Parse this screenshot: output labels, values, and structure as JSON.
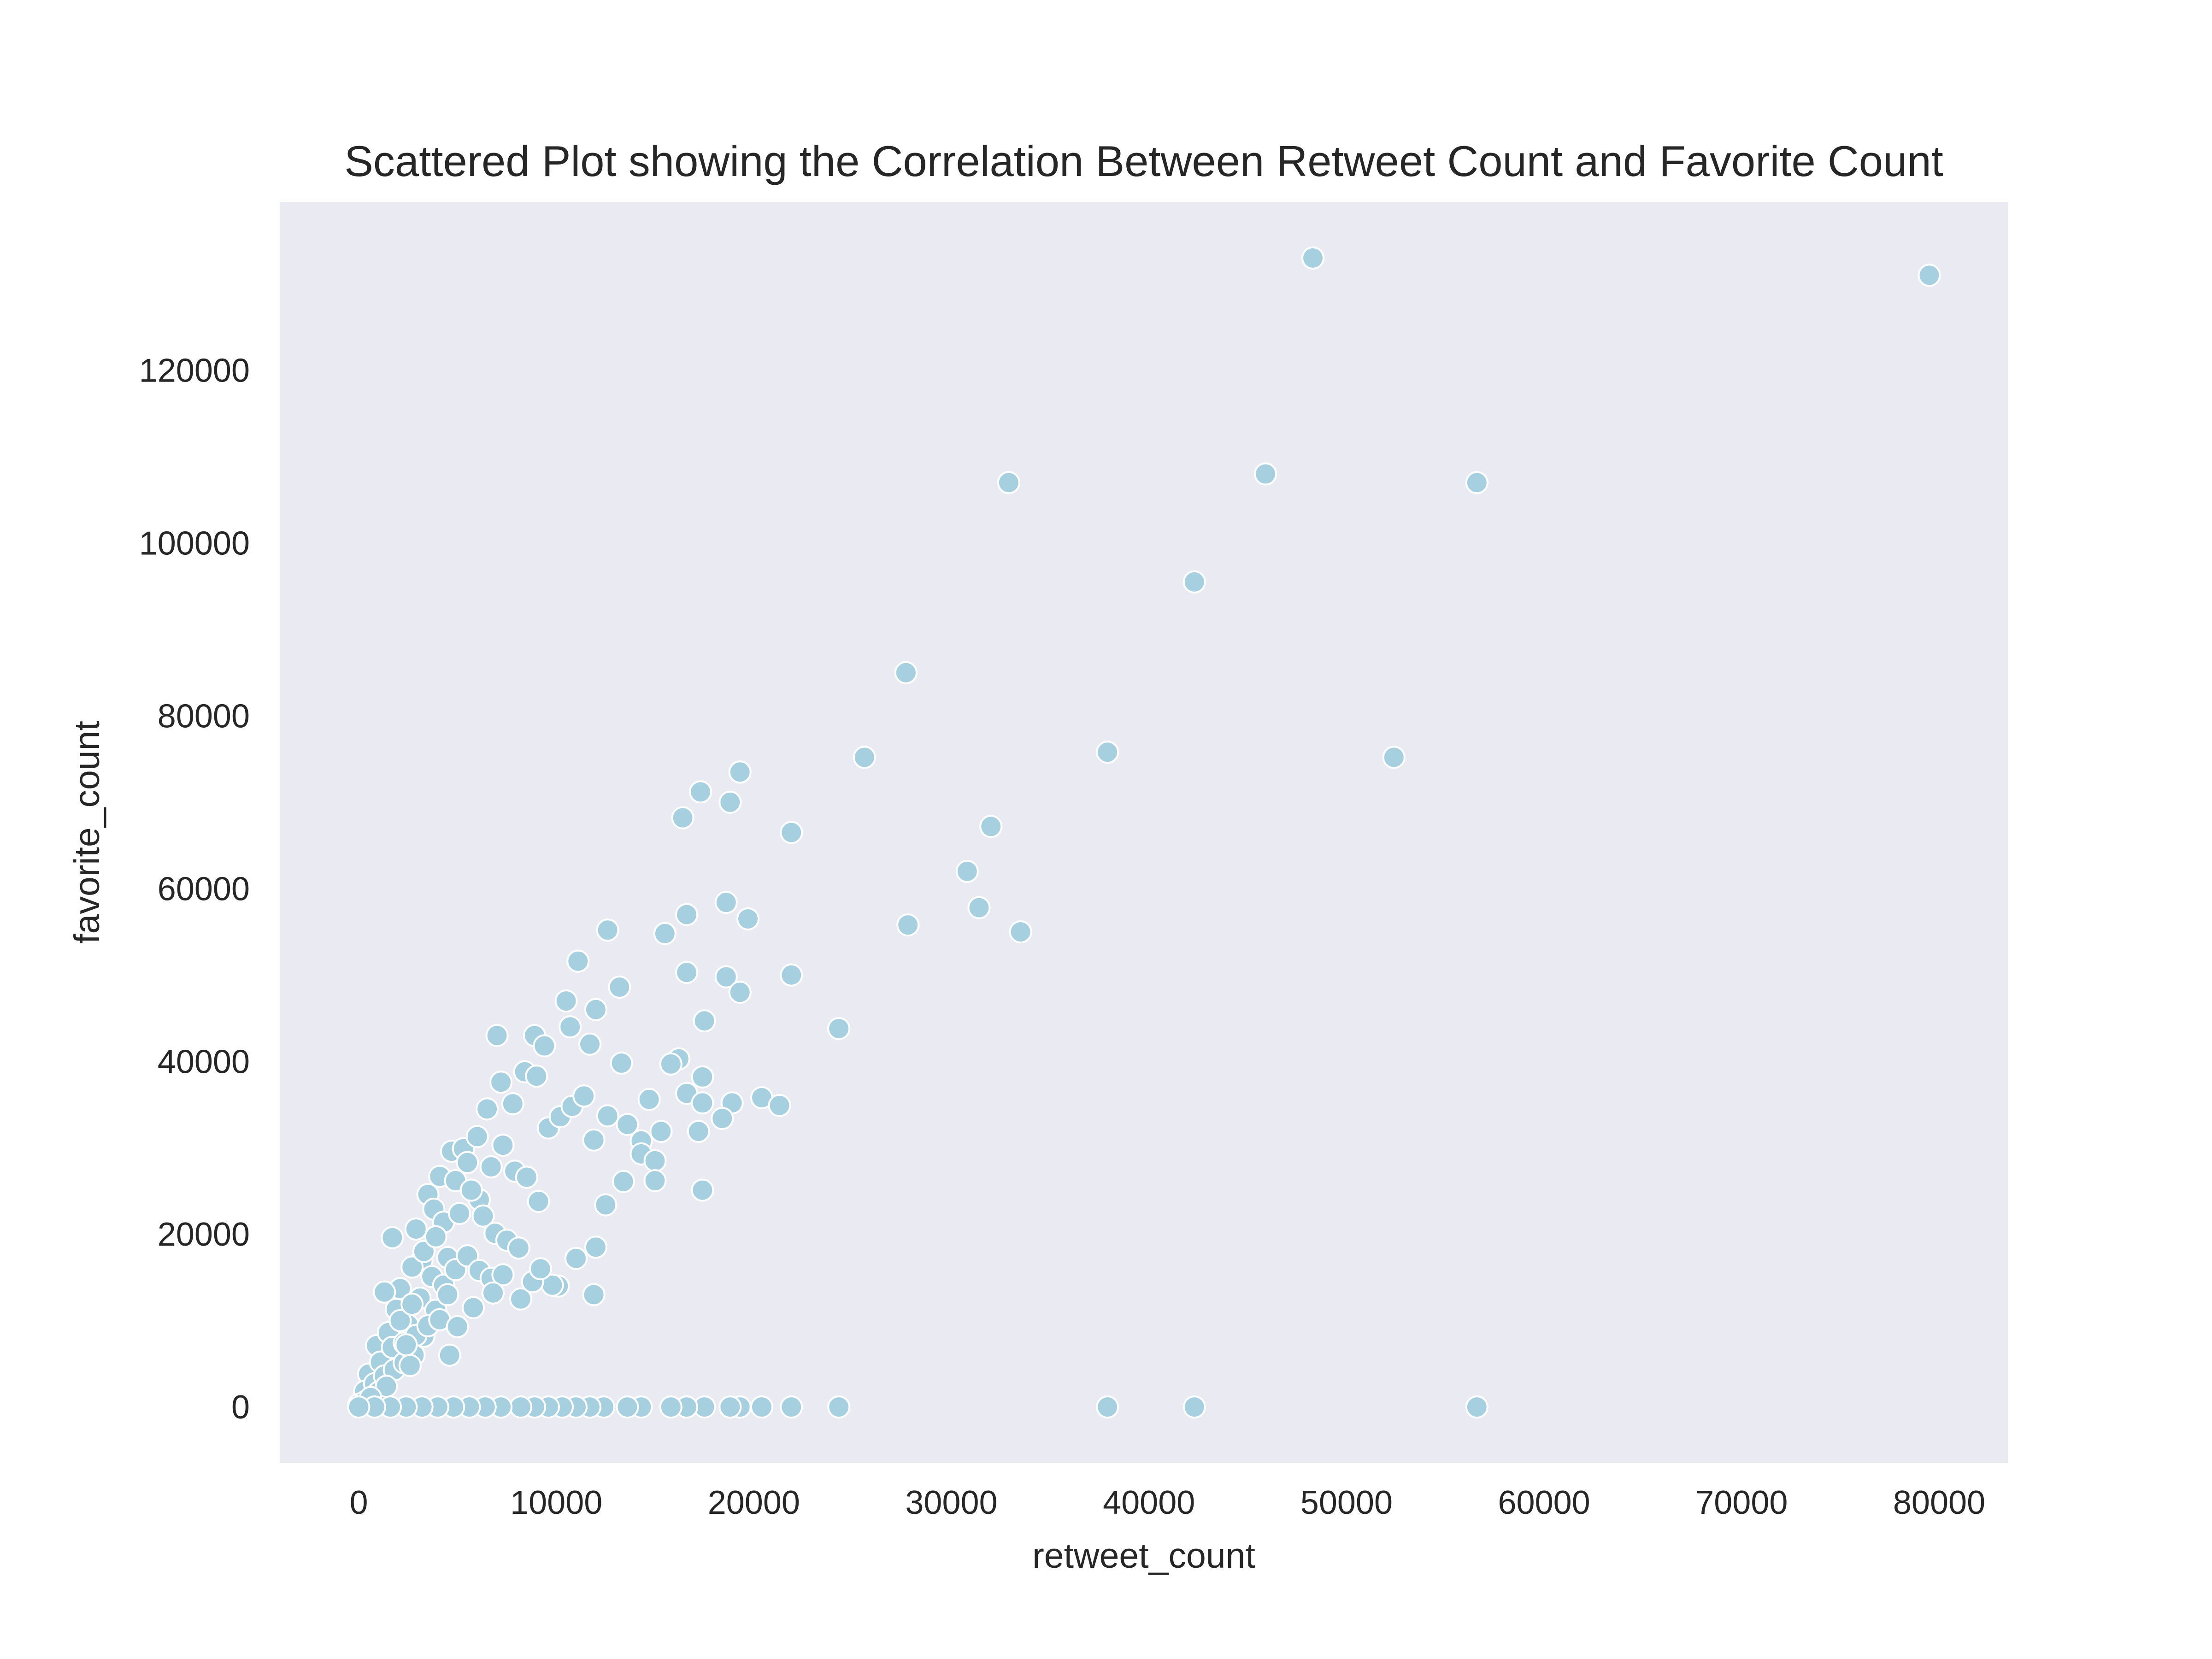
{
  "chart_data": {
    "type": "scatter",
    "title": "Scattered Plot showing the Correlation Between Retweet Count and Favorite Count",
    "xlabel": "retweet_count",
    "ylabel": "favorite_count",
    "xlim": [
      -4000,
      83500
    ],
    "ylim": [
      -6500,
      139500
    ],
    "xticks": [
      0,
      10000,
      20000,
      30000,
      40000,
      50000,
      60000,
      70000,
      80000
    ],
    "yticks": [
      0,
      20000,
      40000,
      60000,
      80000,
      100000,
      120000
    ],
    "grid": false,
    "background_color": "#eaeaf2",
    "point_color": "#a6cfe0",
    "point_edge_color": "#ffffff",
    "series": [
      {
        "x": [
          48300,
          79500,
          45900,
          32900,
          56600,
          42300,
          27700,
          37900,
          52400,
          25600,
          19300,
          17300,
          18800,
          16400,
          21900,
          32000,
          30800,
          31400,
          33500,
          27800,
          18600,
          19700,
          12600,
          16600,
          15500,
          11100,
          18600,
          21900,
          13200,
          19300,
          16600,
          17500,
          24300,
          10500,
          12000,
          10700,
          11700,
          7000,
          8900,
          9400,
          13300,
          16200,
          15800,
          17400,
          16600,
          20400,
          21300,
          18900,
          14700,
          17400,
          18400,
          12600,
          13600,
          11900,
          15300,
          17200,
          14300,
          14300,
          15000,
          15000,
          17400,
          13400,
          12500,
          11900,
          10100,
          1700,
          2900,
          3500,
          4100,
          4700,
          5300,
          6000,
          6500,
          7200,
          7800,
          8400,
          9000,
          9600,
          10200,
          10800,
          11400,
          3200,
          3800,
          4300,
          4900,
          5500,
          6100,
          6700,
          7300,
          7900,
          8500,
          9100,
          2100,
          2700,
          3300,
          3900,
          4500,
          5100,
          5700,
          6300,
          6900,
          7500,
          8100,
          1300,
          1900,
          2500,
          3100,
          3700,
          4300,
          4900,
          5500,
          6100,
          6700,
          7300,
          900,
          1500,
          2100,
          2700,
          3300,
          3900,
          4500,
          500,
          1100,
          1700,
          2300,
          2900,
          3500,
          4100,
          300,
          800,
          1300,
          1800,
          2300,
          2800,
          600,
          1000,
          1400,
          0,
          300,
          600,
          4600,
          8200,
          9800,
          11000,
          12000,
          2400,
          2600,
          5000,
          5800,
          6800,
          8800,
          9200,
          37900,
          42300,
          56600,
          24300,
          21900,
          20400,
          19300,
          18800,
          17500,
          16600,
          15800,
          14300,
          13600,
          12400,
          11700,
          11000,
          10300,
          9600,
          8900,
          8200,
          7200,
          6400,
          5600,
          4800,
          4000,
          3200,
          2400,
          1600,
          800,
          0
        ],
        "y": [
          133000,
          131000,
          108000,
          107000,
          107000,
          95500,
          85000,
          75800,
          75200,
          75200,
          73500,
          71200,
          70000,
          68200,
          66500,
          67200,
          62000,
          57800,
          55000,
          55800,
          58400,
          56500,
          55200,
          57000,
          54800,
          51600,
          49800,
          50000,
          48600,
          48000,
          50300,
          44700,
          43800,
          47000,
          46000,
          44000,
          42000,
          43000,
          43000,
          41800,
          39800,
          40300,
          39700,
          38200,
          36300,
          35800,
          34900,
          35200,
          35600,
          35200,
          33400,
          33700,
          32700,
          30900,
          31900,
          31900,
          30800,
          29300,
          28500,
          26200,
          25100,
          26100,
          23400,
          13000,
          14000,
          19600,
          20600,
          24600,
          26700,
          29600,
          29900,
          31300,
          34500,
          37600,
          35100,
          38800,
          38300,
          32300,
          33600,
          34800,
          36000,
          17000,
          22900,
          21400,
          26200,
          28300,
          24000,
          27800,
          30300,
          27300,
          26600,
          23800,
          13700,
          16200,
          18000,
          19700,
          17300,
          22400,
          25100,
          22100,
          20100,
          19300,
          18400,
          13300,
          11300,
          9500,
          12600,
          15100,
          14100,
          15900,
          17500,
          15800,
          14900,
          15300,
          7100,
          8600,
          10000,
          11900,
          8200,
          11200,
          13000,
          3800,
          5200,
          6900,
          7400,
          8300,
          9400,
          10100,
          1800,
          2700,
          3600,
          4300,
          5100,
          6000,
          900,
          1700,
          2400,
          300,
          600,
          1100,
          6000,
          12500,
          14100,
          17200,
          18500,
          7200,
          4800,
          9300,
          11500,
          13200,
          14500,
          16000,
          0,
          0,
          0,
          0,
          0,
          0,
          0,
          0,
          0,
          0,
          0,
          0,
          0,
          0,
          0,
          0,
          0,
          0,
          0,
          0,
          0,
          0,
          0,
          0,
          0,
          0,
          0,
          0,
          0,
          0
        ]
      }
    ]
  }
}
